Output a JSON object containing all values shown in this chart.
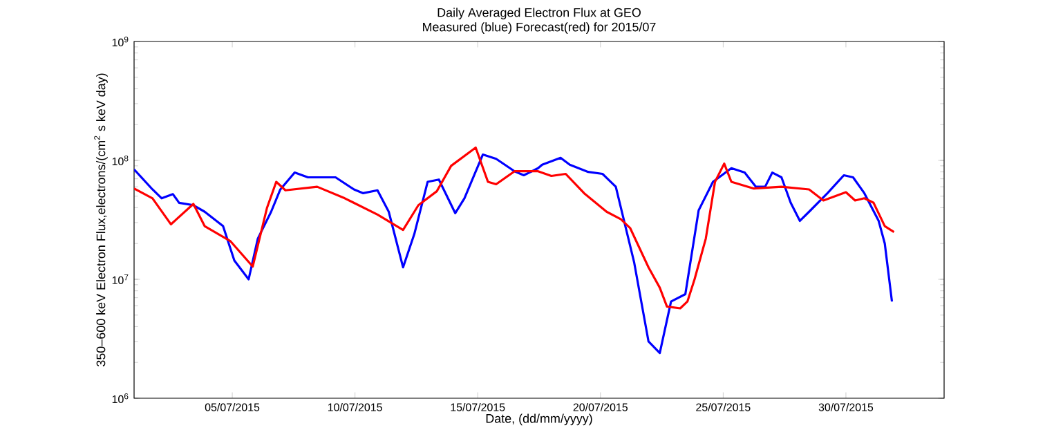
{
  "chart_data": {
    "type": "line",
    "title": "Daily Averaged Electron Flux at GEO",
    "subtitle": "Measured (blue) Forecast(red) for 2015/07",
    "xlabel": "Date, (dd/mm/yyyy)",
    "ylabel": "350–600 keV Electron Flux,electrons/(cm$^{2}$ s keV day)",
    "log": "y",
    "xlim": [
      "2015-07-01",
      "2015-08-03"
    ],
    "ylim": [
      1000000,
      1000000000
    ],
    "xticks": [
      {
        "value": "2015-07-05",
        "label": "05/07/2015"
      },
      {
        "value": "2015-07-10",
        "label": "10/07/2015"
      },
      {
        "value": "2015-07-15",
        "label": "15/07/2015"
      },
      {
        "value": "2015-07-20",
        "label": "20/07/2015"
      },
      {
        "value": "2015-07-25",
        "label": "25/07/2015"
      },
      {
        "value": "2015-07-30",
        "label": "30/07/2015"
      }
    ],
    "yticks": [
      {
        "value": 1000000,
        "label": "10$^{6}$"
      },
      {
        "value": 10000000,
        "label": "10$^{7}$"
      },
      {
        "value": 100000000,
        "label": "10$^{8}$"
      },
      {
        "value": 1000000000,
        "label": "10$^{9}$"
      }
    ],
    "series": [
      {
        "color": "#0000ff",
        "x": [
          "2015-07-01T00:00",
          "2015-07-01T18:00",
          "2015-07-02T03:00",
          "2015-07-02T14:00",
          "2015-07-02T20:00",
          "2015-07-03T10:00",
          "2015-07-03T21:00",
          "2015-07-04T15:00",
          "2015-07-05T02:00",
          "2015-07-05T16:00",
          "2015-07-06T01:00",
          "2015-07-06T14:00",
          "2015-07-06T23:00",
          "2015-07-07T13:00",
          "2015-07-08T02:00",
          "2015-07-09T05:00",
          "2015-07-09T23:00",
          "2015-07-10T08:00",
          "2015-07-10T22:00",
          "2015-07-11T09:00",
          "2015-07-11T23:00",
          "2015-07-12T10:00",
          "2015-07-12T23:00",
          "2015-07-13T10:00",
          "2015-07-14T02:00",
          "2015-07-14T11:00",
          "2015-07-15T05:00",
          "2015-07-15T18:00",
          "2015-07-16T12:00",
          "2015-07-16T21:00",
          "2015-07-17T11:00",
          "2015-07-17T15:00",
          "2015-07-18T09:00",
          "2015-07-18T18:00",
          "2015-07-19T12:00",
          "2015-07-20T02:00",
          "2015-07-20T15:00",
          "2015-07-21T09:00",
          "2015-07-21T23:00",
          "2015-07-22T10:00",
          "2015-07-22T21:00",
          "2015-07-23T11:00",
          "2015-07-24T00:00",
          "2015-07-24T14:00",
          "2015-07-25T08:00",
          "2015-07-25T21:00",
          "2015-07-26T08:00",
          "2015-07-26T17:00",
          "2015-07-27T00:00",
          "2015-07-27T09:00",
          "2015-07-27T18:00",
          "2015-07-28T03:00",
          "2015-07-28T12:00",
          "2015-07-29T06:00",
          "2015-07-29T22:00",
          "2015-07-30T07:00",
          "2015-07-30T18:00",
          "2015-07-31T08:00",
          "2015-07-31T14:00",
          "2015-07-31T21:00"
        ],
        "values": [
          84000000.0,
          57000000.0,
          48000000.0,
          52000000.0,
          44000000.0,
          42000000.0,
          37000000.0,
          28000000.0,
          14400000.0,
          10000000.0,
          22000000.0,
          37000000.0,
          57000000.0,
          79000000.0,
          72000000.0,
          72000000.0,
          57000000.0,
          53000000.0,
          56000000.0,
          37000000.0,
          12600000.0,
          24000000.0,
          66000000.0,
          69000000.0,
          36000000.0,
          48000000.0,
          112000000.0,
          103000000.0,
          81000000.0,
          75000000.0,
          86000000.0,
          92000000.0,
          105000000.0,
          92000000.0,
          80000000.0,
          77000000.0,
          60000000.0,
          13800000.0,
          3000000.0,
          2400000.0,
          6500000.0,
          7500000.0,
          38000000.0,
          66000000.0,
          86000000.0,
          79000000.0,
          60000000.0,
          60000000.0,
          79000000.0,
          72000000.0,
          44000000.0,
          31000000.0,
          37000000.0,
          53000000.0,
          75000000.0,
          72000000.0,
          53000000.0,
          31000000.0,
          20000000.0,
          6500000.0
        ]
      },
      {
        "color": "#ff0000",
        "x": [
          "2015-07-01T00:00",
          "2015-07-01T18:00",
          "2015-07-02T12:00",
          "2015-07-03T10:00",
          "2015-07-03T21:00",
          "2015-07-04T22:00",
          "2015-07-05T20:00",
          "2015-07-06T10:00",
          "2015-07-06T19:00",
          "2015-07-07T04:00",
          "2015-07-08T11:00",
          "2015-07-09T14:00",
          "2015-07-10T22:00",
          "2015-07-11T23:00",
          "2015-07-12T14:00",
          "2015-07-13T08:00",
          "2015-07-13T22:00",
          "2015-07-14T22:00",
          "2015-07-15T10:00",
          "2015-07-15T18:00",
          "2015-07-16T12:00",
          "2015-07-17T11:00",
          "2015-07-18T00:00",
          "2015-07-18T14:00",
          "2015-07-19T08:00",
          "2015-07-20T06:00",
          "2015-07-20T20:00",
          "2015-07-21T05:00",
          "2015-07-21T23:00",
          "2015-07-22T10:00",
          "2015-07-22T17:00",
          "2015-07-23T06:00",
          "2015-07-23T13:00",
          "2015-07-23T20:00",
          "2015-07-24T07:00",
          "2015-07-24T16:00",
          "2015-07-25T01:00",
          "2015-07-25T08:00",
          "2015-07-26T06:00",
          "2015-07-27T09:00",
          "2015-07-28T12:00",
          "2015-07-29T02:00",
          "2015-07-30T00:00",
          "2015-07-30T09:00",
          "2015-07-30T18:00",
          "2015-07-31T03:00",
          "2015-07-31T14:00",
          "2015-07-31T23:00"
        ],
        "values": [
          58000000.0,
          48000000.0,
          29000000.0,
          43000000.0,
          28000000.0,
          21000000.0,
          12800000.0,
          40000000.0,
          66000000.0,
          56000000.0,
          60000000.0,
          48000000.0,
          35000000.0,
          26000000.0,
          42000000.0,
          55000000.0,
          90000000.0,
          128000000.0,
          66000000.0,
          63000000.0,
          81000000.0,
          81000000.0,
          74000000.0,
          77000000.0,
          53000000.0,
          37000000.0,
          32000000.0,
          27000000.0,
          12600000.0,
          8500000.0,
          5900000.0,
          5700000.0,
          6500000.0,
          10000000.0,
          22000000.0,
          66000000.0,
          94000000.0,
          66000000.0,
          58000000.0,
          60000000.0,
          57000000.0,
          46000000.0,
          54000000.0,
          46000000.0,
          48000000.0,
          44000000.0,
          28000000.0,
          25000000.0
        ]
      }
    ]
  }
}
